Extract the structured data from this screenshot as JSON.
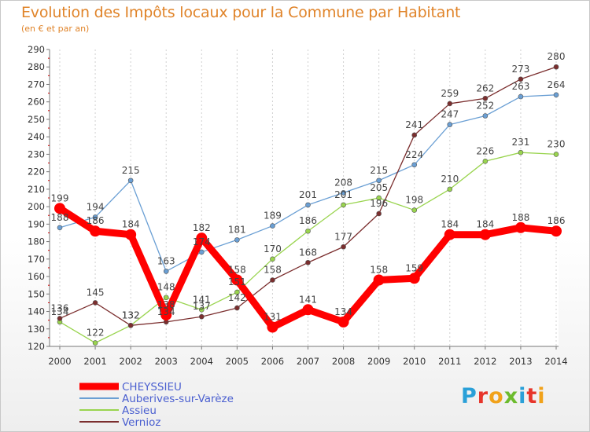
{
  "title": "Evolution des Impôts locaux pour la Commune par Habitant",
  "subtitle": "(en € et par an)",
  "logo": "Proxiti",
  "chart_data": {
    "type": "line",
    "x": [
      "2000",
      "2001",
      "2002",
      "2003",
      "2004",
      "2005",
      "2006",
      "2007",
      "2008",
      "2009",
      "2010",
      "2011",
      "2012",
      "2013",
      "2014"
    ],
    "ylim": [
      120,
      290
    ],
    "yticks": [
      120,
      130,
      140,
      150,
      160,
      170,
      180,
      190,
      200,
      210,
      220,
      230,
      240,
      250,
      260,
      270,
      280,
      290
    ],
    "grid": "vertical",
    "legend": "bottom-left",
    "series": [
      {
        "name": "CHEYSSIEU",
        "color": "#ff0000",
        "values": [
          199,
          186,
          184,
          138,
          182,
          158,
          131,
          141,
          134,
          158,
          159,
          184,
          184,
          188,
          186
        ],
        "labels": [
          "199",
          "186",
          "184",
          "138",
          "182",
          "158",
          "131",
          "141",
          "134",
          "158",
          "159",
          "184",
          "184",
          "188",
          "186"
        ]
      },
      {
        "name": "Auberives-sur-Varèze",
        "color": "#6a9fd4",
        "values": [
          188,
          194,
          215,
          163,
          174,
          181,
          189,
          201,
          208,
          215,
          224,
          247,
          252,
          263,
          264
        ],
        "labels": [
          "188",
          "194",
          "215",
          "163",
          "174",
          "181",
          "189",
          "201",
          "208",
          "215",
          "224",
          "247",
          "252",
          "263",
          "264"
        ]
      },
      {
        "name": "Assieu",
        "color": "#99d44e",
        "values": [
          134,
          122,
          132,
          148,
          141,
          151,
          170,
          186,
          201,
          205,
          198,
          210,
          226,
          231,
          230
        ],
        "labels": [
          "134",
          "122",
          "132",
          "148",
          "141",
          "151",
          "170",
          "186",
          "201",
          "205",
          "198",
          "210",
          "226",
          "231",
          "230"
        ]
      },
      {
        "name": "Vernioz",
        "color": "#7b2e2e",
        "values": [
          136,
          145,
          132,
          134,
          137,
          142,
          158,
          168,
          177,
          196,
          241,
          259,
          262,
          273,
          280
        ],
        "labels": [
          "136",
          "145",
          "132",
          "134",
          "137",
          "142",
          "158",
          "168",
          "177",
          "196",
          "241",
          "259",
          "262",
          "273",
          "280"
        ]
      }
    ]
  }
}
